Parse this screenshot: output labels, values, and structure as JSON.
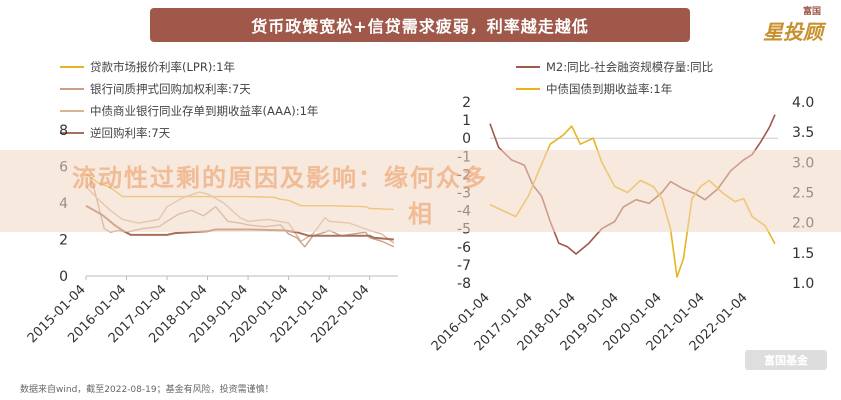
{
  "header": {
    "title": "货币政策宽松+信贷需求疲弱，利率越走越低"
  },
  "brand": {
    "name": "星投顾",
    "parent": "富国",
    "bottom": "富国基金"
  },
  "footnote": "数据来自wind，截至2022-08-19；基金有风险，投资需谨慎！",
  "watermark": {
    "line1": "流动性过剩的原因及影响：缘何众多",
    "line2": "相"
  },
  "chart_data": [
    {
      "type": "line",
      "title": "",
      "ylim": [
        0,
        8
      ],
      "yticks": [
        "0",
        "2",
        "4",
        "6",
        "8"
      ],
      "xticks": [
        "2015-01-04",
        "2016-01-04",
        "2017-01-04",
        "2018-01-04",
        "2019-01-04",
        "2020-01-04",
        "2021-01-04",
        "2022-01-04"
      ],
      "series": [
        {
          "name": "贷款市场报价利率(LPR):1年",
          "color": "#e8b422",
          "x": [
            2015.0,
            2015.3,
            2015.6,
            2015.9,
            2016.3,
            2017.0,
            2018.0,
            2019.0,
            2019.65,
            2019.8,
            2020.0,
            2020.3,
            2021.0,
            2021.9,
            2022.0,
            2022.6
          ],
          "values": [
            5.6,
            5.1,
            4.85,
            4.35,
            4.35,
            4.35,
            4.35,
            4.35,
            4.31,
            4.2,
            4.15,
            3.85,
            3.85,
            3.8,
            3.7,
            3.65
          ]
        },
        {
          "name": "银行间质押式回购加权利率:7天",
          "color": "#c9a08a",
          "x": [
            2015.0,
            2015.15,
            2015.3,
            2015.45,
            2015.6,
            2015.8,
            2016.0,
            2016.4,
            2016.8,
            2017.0,
            2017.3,
            2017.6,
            2017.9,
            2018.2,
            2018.5,
            2018.8,
            2019.0,
            2019.4,
            2019.8,
            2020.0,
            2020.2,
            2020.4,
            2020.6,
            2020.9,
            2021.0,
            2021.3,
            2021.6,
            2021.9,
            2022.0,
            2022.3,
            2022.6
          ],
          "values": [
            4.8,
            5.2,
            3.9,
            2.6,
            2.4,
            2.5,
            2.4,
            2.6,
            2.7,
            3.0,
            3.4,
            3.6,
            3.3,
            3.8,
            3.0,
            2.9,
            2.8,
            2.7,
            2.8,
            2.3,
            2.1,
            1.6,
            2.2,
            2.4,
            2.5,
            2.2,
            2.3,
            2.4,
            2.1,
            1.9,
            1.6
          ]
        },
        {
          "name": "中债商业银行同业存单到期收益率(AAA):1年",
          "color": "#d9b491",
          "x": [
            2015.0,
            2015.3,
            2015.6,
            2015.9,
            2016.3,
            2016.8,
            2017.0,
            2017.4,
            2017.8,
            2018.0,
            2018.4,
            2018.8,
            2019.0,
            2019.5,
            2020.0,
            2020.3,
            2020.6,
            2020.9,
            2021.0,
            2021.5,
            2022.0,
            2022.3,
            2022.6
          ],
          "values": [
            4.9,
            4.2,
            3.6,
            3.1,
            2.9,
            3.1,
            3.8,
            4.3,
            4.6,
            4.5,
            4.0,
            3.2,
            3.0,
            3.1,
            2.9,
            1.9,
            2.3,
            3.2,
            3.0,
            2.9,
            2.5,
            2.3,
            1.8
          ]
        },
        {
          "name": "逆回购利率:7天",
          "color": "#a87058",
          "x": [
            2015.0,
            2015.4,
            2015.7,
            2015.9,
            2016.1,
            2017.0,
            2017.2,
            2018.0,
            2018.2,
            2019.0,
            2019.9,
            2020.2,
            2020.5,
            2021.0,
            2022.0,
            2022.1,
            2022.6
          ],
          "values": [
            3.85,
            3.35,
            2.8,
            2.5,
            2.25,
            2.25,
            2.35,
            2.45,
            2.55,
            2.55,
            2.5,
            2.4,
            2.2,
            2.2,
            2.2,
            2.1,
            2.0
          ]
        }
      ]
    },
    {
      "type": "line",
      "title": "",
      "ylim_left": [
        -8,
        2
      ],
      "ylim_right": [
        1.0,
        4.0
      ],
      "yticks_left": [
        "2",
        "1",
        "0",
        "-1",
        "-2",
        "-3",
        "-4",
        "-5",
        "-6",
        "-7",
        "-8"
      ],
      "yticks_right": [
        "4.0",
        "3.5",
        "3.0",
        "2.5",
        "2.0",
        "1.5",
        "1.0"
      ],
      "xticks": [
        "2016-01-04",
        "2017-01-04",
        "2018-01-04",
        "2019-01-04",
        "2020-01-04",
        "2021-01-04",
        "2022-01-04"
      ],
      "series": [
        {
          "name": "M2:同比-社会融资规模存量:同比",
          "color": "#a0584a",
          "axis": "left",
          "x": [
            2016.0,
            2016.2,
            2016.5,
            2016.8,
            2017.0,
            2017.2,
            2017.4,
            2017.6,
            2017.8,
            2018.0,
            2018.3,
            2018.6,
            2018.9,
            2019.1,
            2019.4,
            2019.7,
            2020.0,
            2020.2,
            2020.5,
            2020.8,
            2021.0,
            2021.3,
            2021.6,
            2021.9,
            2022.1,
            2022.3,
            2022.5,
            2022.63
          ],
          "values": [
            0.8,
            -0.5,
            -1.2,
            -1.5,
            -2.6,
            -3.2,
            -4.6,
            -5.8,
            -6.0,
            -6.4,
            -5.8,
            -5.0,
            -4.6,
            -3.8,
            -3.4,
            -3.6,
            -3.0,
            -2.4,
            -2.8,
            -3.1,
            -3.4,
            -2.8,
            -1.8,
            -1.2,
            -0.9,
            -0.2,
            0.6,
            1.3
          ]
        },
        {
          "name": "中债国债到期收益率:1年",
          "color": "#e8b422",
          "axis": "right",
          "x": [
            2016.0,
            2016.3,
            2016.6,
            2016.9,
            2017.1,
            2017.4,
            2017.7,
            2017.9,
            2018.1,
            2018.4,
            2018.6,
            2018.9,
            2019.2,
            2019.5,
            2019.8,
            2020.0,
            2020.2,
            2020.35,
            2020.5,
            2020.7,
            2020.9,
            2021.1,
            2021.4,
            2021.7,
            2021.9,
            2022.1,
            2022.4,
            2022.63
          ],
          "values": [
            2.3,
            2.2,
            2.1,
            2.45,
            2.8,
            3.3,
            3.45,
            3.6,
            3.3,
            3.4,
            3.0,
            2.6,
            2.5,
            2.7,
            2.6,
            2.4,
            1.9,
            1.1,
            1.4,
            2.4,
            2.6,
            2.7,
            2.5,
            2.35,
            2.4,
            2.1,
            1.95,
            1.65
          ]
        }
      ]
    }
  ]
}
